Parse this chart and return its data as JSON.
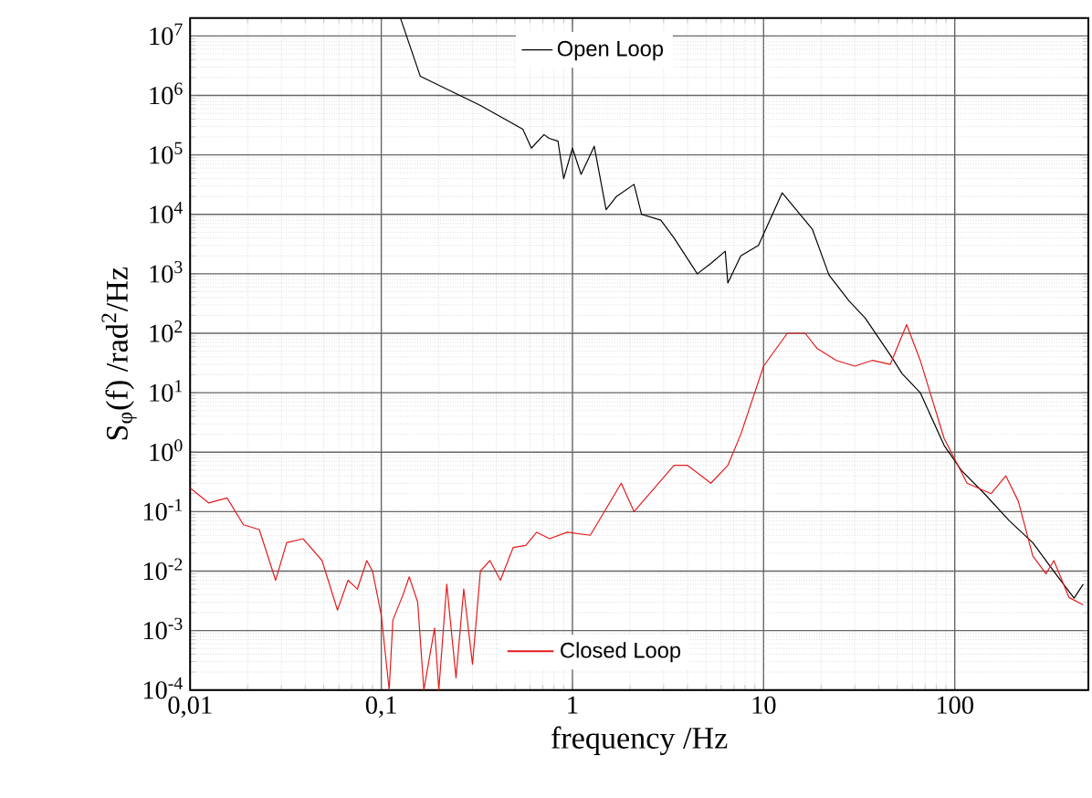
{
  "chart_data": {
    "type": "line",
    "xlabel": "frequency /Hz",
    "ylabel": "S$_{φ}$(f) /rad$^{2}$/Hz",
    "log": "xy",
    "grid": true,
    "legend": "top",
    "line_style": "solid",
    "marker": "none",
    "xlim": [
      0.01,
      500
    ],
    "ylim": [
      0.0001,
      20000000
    ],
    "xticks": [
      {
        "value": 0.01,
        "label": "0,01"
      },
      {
        "value": 0.1,
        "label": "0,1"
      },
      1,
      10,
      100
    ],
    "yticks": [
      {
        "value": 0.0001,
        "label": "10$^{-4}$"
      },
      {
        "value": 0.001,
        "label": "10$^{-3}$"
      },
      {
        "value": 0.01,
        "label": "10$^{-2}$"
      },
      {
        "value": 0.1,
        "label": "10$^{-1}$"
      },
      {
        "value": 1,
        "label": "10$^{0}$"
      },
      {
        "value": 10,
        "label": "10$^{1}$"
      },
      {
        "value": 100,
        "label": "10$^{2}$"
      },
      {
        "value": 1000,
        "label": "10$^{3}$"
      },
      {
        "value": 10000,
        "label": "10$^{4}$"
      },
      {
        "value": 100000,
        "label": "10$^{5}$"
      },
      {
        "value": 1000000,
        "label": "10$^{6}$"
      },
      {
        "value": 10000000,
        "label": "10$^{7}$"
      }
    ],
    "series": [
      {
        "name": "Open Loop",
        "color": "#000000",
        "x": [
          0.126,
          0.16,
          0.33,
          0.55,
          0.61,
          0.71,
          0.755,
          0.84,
          0.9,
          1.0,
          1.11,
          1.3,
          1.5,
          1.7,
          2.1,
          2.3,
          2.9,
          3.4,
          4.5,
          5.3,
          6.3,
          6.5,
          7.6,
          9.4,
          12.5,
          14.8,
          18,
          22,
          28,
          34,
          46,
          53,
          66,
          88,
          108,
          143,
          193,
          256,
          337,
          421,
          470
        ],
        "values": [
          20000000,
          2100000,
          680000,
          270000,
          130000,
          220000,
          190000,
          170000,
          40000,
          130000,
          47000,
          140000,
          12000,
          20000,
          32000,
          10000,
          8000,
          4000,
          1000,
          1500,
          2400,
          700,
          2000,
          3000,
          23000,
          12000,
          5600,
          950,
          350,
          180,
          43,
          21,
          10,
          1.3,
          0.5,
          0.2,
          0.07,
          0.03,
          0.009,
          0.0035,
          0.006
        ]
      },
      {
        "name": "Closed Loop",
        "color": "#e41a1c",
        "x": [
          0.01,
          0.0125,
          0.0156,
          0.019,
          0.023,
          0.028,
          0.032,
          0.039,
          0.049,
          0.059,
          0.067,
          0.075,
          0.084,
          0.09,
          0.1,
          0.11,
          0.115,
          0.13,
          0.14,
          0.155,
          0.167,
          0.19,
          0.2,
          0.22,
          0.246,
          0.27,
          0.3,
          0.33,
          0.37,
          0.42,
          0.49,
          0.57,
          0.65,
          0.76,
          0.94,
          1.24,
          1.8,
          2.1,
          3.4,
          4.0,
          5.3,
          6.5,
          7.6,
          10,
          13.3,
          16.5,
          19,
          24,
          30,
          37,
          46,
          56,
          66,
          88,
          116,
          155,
          185,
          215,
          256,
          300,
          330,
          396,
          470
        ],
        "values": [
          0.25,
          0.14,
          0.17,
          0.06,
          0.05,
          0.007,
          0.03,
          0.035,
          0.015,
          0.0022,
          0.007,
          0.005,
          0.015,
          0.01,
          0.0018,
          0.0001,
          0.0015,
          0.004,
          0.008,
          0.003,
          0.0001,
          0.0011,
          0.0001,
          0.006,
          0.00016,
          0.005,
          0.00027,
          0.01,
          0.015,
          0.007,
          0.025,
          0.027,
          0.045,
          0.035,
          0.045,
          0.04,
          0.3,
          0.1,
          0.6,
          0.6,
          0.3,
          0.6,
          2,
          28,
          100,
          100,
          56,
          35,
          28,
          35,
          30,
          140,
          35,
          1.7,
          0.3,
          0.2,
          0.4,
          0.15,
          0.018,
          0.009,
          0.015,
          0.0036,
          0.0027
        ]
      }
    ]
  }
}
